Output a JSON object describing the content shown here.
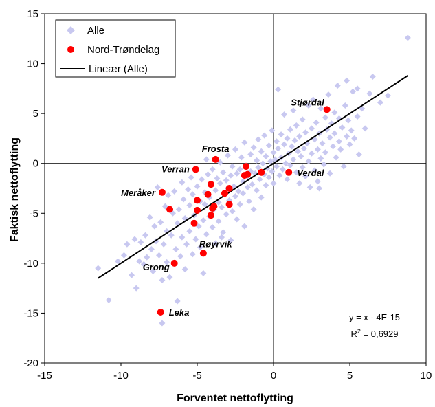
{
  "chart_data": {
    "type": "scatter",
    "xlabel": "Forventet nettoflytting",
    "ylabel": "Faktisk nettoflytting",
    "xlim": [
      -15,
      10
    ],
    "ylim": [
      -20,
      15
    ],
    "xticks": [
      "-15",
      "-10",
      "-5",
      "0",
      "5",
      "10"
    ],
    "yticks": [
      "15",
      "10",
      "5",
      "0",
      "-5",
      "-10",
      "-15",
      "-20"
    ],
    "grid": false,
    "legend_position": "top-left",
    "legend": {
      "all": "Alle",
      "nt": "Nord-Trøndelag",
      "trend": "Lineær (Alle)"
    },
    "trendline": {
      "equation": "y = x - 4E-15",
      "r2_prefix": "R",
      "r2_sup": "2",
      "r2_value": " = 0,6929",
      "x_start": -11.5,
      "x_end": 8.8,
      "slope": 1,
      "intercept": 0
    },
    "series": [
      {
        "name": "Alle",
        "color": "#c8c8f0",
        "marker": "diamond",
        "points": [
          [
            -11.5,
            -10.5
          ],
          [
            -10.8,
            -13.7
          ],
          [
            -10.2,
            -9.8
          ],
          [
            -9.8,
            -9.2
          ],
          [
            -9.6,
            -8.1
          ],
          [
            -9.3,
            -11.2
          ],
          [
            -9.1,
            -7.6
          ],
          [
            -9.0,
            -12.5
          ],
          [
            -8.8,
            -9.8
          ],
          [
            -8.7,
            -7.9
          ],
          [
            -8.5,
            -10.1
          ],
          [
            -8.4,
            -7.2
          ],
          [
            -8.3,
            -9.4
          ],
          [
            -8.1,
            -5.4
          ],
          [
            -8.0,
            -8.6
          ],
          [
            -7.9,
            -10.8
          ],
          [
            -7.8,
            -6.3
          ],
          [
            -7.7,
            -7.8
          ],
          [
            -7.6,
            -2.4
          ],
          [
            -7.5,
            -9.2
          ],
          [
            -7.4,
            -5.9
          ],
          [
            -7.3,
            -16.0
          ],
          [
            -7.3,
            -11.7
          ],
          [
            -7.2,
            -8.1
          ],
          [
            -7.1,
            -4.3
          ],
          [
            -7.0,
            -6.8
          ],
          [
            -7.0,
            -9.9
          ],
          [
            -6.9,
            -3.2
          ],
          [
            -6.8,
            -11.4
          ],
          [
            -6.7,
            -7.2
          ],
          [
            -6.6,
            -5.0
          ],
          [
            -6.5,
            -2.8
          ],
          [
            -6.4,
            -8.6
          ],
          [
            -6.3,
            -13.8
          ],
          [
            -6.3,
            -6.0
          ],
          [
            -6.2,
            -4.6
          ],
          [
            -6.1,
            -9.3
          ],
          [
            -6.0,
            -1.9
          ],
          [
            -6.0,
            -7.4
          ],
          [
            -5.9,
            -3.6
          ],
          [
            -5.8,
            -5.5
          ],
          [
            -5.8,
            -10.6
          ],
          [
            -5.7,
            -8.1
          ],
          [
            -5.6,
            -2.6
          ],
          [
            -5.5,
            -4.2
          ],
          [
            -5.5,
            -6.8
          ],
          [
            -5.4,
            -1.4
          ],
          [
            -5.3,
            -3.1
          ],
          [
            -5.3,
            -9.1
          ],
          [
            -5.2,
            -5.2
          ],
          [
            -5.1,
            -7.6
          ],
          [
            -5.1,
            -0.7
          ],
          [
            -5.0,
            -2.3
          ],
          [
            -5.0,
            -4.7
          ],
          [
            -4.9,
            -6.3
          ],
          [
            -4.8,
            -3.8
          ],
          [
            -4.8,
            -8.4
          ],
          [
            -4.7,
            -1.6
          ],
          [
            -4.6,
            -5.7
          ],
          [
            -4.6,
            -11.0
          ],
          [
            -4.5,
            -2.9
          ],
          [
            -4.5,
            -4.1
          ],
          [
            -4.4,
            0.4
          ],
          [
            -4.4,
            -7.1
          ],
          [
            -4.3,
            -1.1
          ],
          [
            -4.2,
            -3.4
          ],
          [
            -4.2,
            -5.3
          ],
          [
            -4.1,
            -2.2
          ],
          [
            -4.0,
            -6.4
          ],
          [
            -4.0,
            -0.6
          ],
          [
            -3.9,
            -4.6
          ],
          [
            -3.8,
            -2.7
          ],
          [
            -3.8,
            -8.0
          ],
          [
            -3.7,
            -1.5
          ],
          [
            -3.6,
            -3.9
          ],
          [
            -3.6,
            -5.8
          ],
          [
            -3.5,
            0.1
          ],
          [
            -3.5,
            -2.0
          ],
          [
            -3.4,
            -4.4
          ],
          [
            -3.3,
            -0.9
          ],
          [
            -3.3,
            -6.9
          ],
          [
            -3.2,
            -3.1
          ],
          [
            -3.1,
            -1.7
          ],
          [
            -3.1,
            -5.1
          ],
          [
            -3.0,
            0.8
          ],
          [
            -3.0,
            -2.5
          ],
          [
            -2.9,
            -3.7
          ],
          [
            -2.8,
            -1.2
          ],
          [
            -2.8,
            -7.7
          ],
          [
            -2.7,
            -4.8
          ],
          [
            -2.7,
            -0.3
          ],
          [
            -2.6,
            -2.3
          ],
          [
            -2.5,
            -3.3
          ],
          [
            -2.5,
            1.4
          ],
          [
            -2.4,
            -1.0
          ],
          [
            -2.4,
            -5.6
          ],
          [
            -2.3,
            -2.8
          ],
          [
            -2.2,
            -0.6
          ],
          [
            -2.2,
            -4.1
          ],
          [
            -2.1,
            0.6
          ],
          [
            -2.0,
            -1.8
          ],
          [
            -2.0,
            -3.0
          ],
          [
            -1.9,
            2.1
          ],
          [
            -1.9,
            -6.3
          ],
          [
            -1.8,
            -0.2
          ],
          [
            -1.7,
            -2.4
          ],
          [
            -1.7,
            -1.3
          ],
          [
            -1.6,
            -3.8
          ],
          [
            -1.5,
            0.9
          ],
          [
            -1.5,
            -0.8
          ],
          [
            -1.4,
            -2.1
          ],
          [
            -1.3,
            1.6
          ],
          [
            -1.3,
            -4.6
          ],
          [
            -1.2,
            -1.0
          ],
          [
            -1.1,
            0.3
          ],
          [
            -1.1,
            -2.7
          ],
          [
            -1.0,
            2.4
          ],
          [
            -1.0,
            -0.4
          ],
          [
            -0.9,
            -1.6
          ],
          [
            -0.8,
            1.2
          ],
          [
            -0.8,
            -3.4
          ],
          [
            -0.7,
            0.0
          ],
          [
            -0.6,
            -1.1
          ],
          [
            -0.6,
            2.8
          ],
          [
            -0.5,
            0.7
          ],
          [
            -0.5,
            -2.2
          ],
          [
            -0.4,
            -0.5
          ],
          [
            -0.3,
            1.8
          ],
          [
            -0.3,
            -1.4
          ],
          [
            -0.2,
            0.2
          ],
          [
            -0.1,
            3.3
          ],
          [
            -0.1,
            -0.8
          ],
          [
            0.0,
            1.1
          ],
          [
            0.0,
            -2.0
          ],
          [
            0.1,
            0.4
          ],
          [
            0.2,
            2.2
          ],
          [
            0.2,
            -0.3
          ],
          [
            0.3,
            7.4
          ],
          [
            0.3,
            1.5
          ],
          [
            0.4,
            -1.2
          ],
          [
            0.5,
            0.6
          ],
          [
            0.5,
            2.9
          ],
          [
            0.6,
            -0.6
          ],
          [
            0.7,
            1.9
          ],
          [
            0.7,
            4.9
          ],
          [
            0.8,
            0.0
          ],
          [
            0.9,
            2.5
          ],
          [
            0.9,
            -1.6
          ],
          [
            1.0,
            1.0
          ],
          [
            1.1,
            3.4
          ],
          [
            1.1,
            -0.2
          ],
          [
            1.2,
            1.7
          ],
          [
            1.3,
            5.3
          ],
          [
            1.3,
            0.4
          ],
          [
            1.4,
            2.3
          ],
          [
            1.5,
            -0.9
          ],
          [
            1.5,
            3.8
          ],
          [
            1.6,
            1.2
          ],
          [
            1.7,
            -2.0
          ],
          [
            1.7,
            2.7
          ],
          [
            1.8,
            0.7
          ],
          [
            1.9,
            4.4
          ],
          [
            1.9,
            -0.4
          ],
          [
            2.0,
            1.5
          ],
          [
            2.1,
            3.1
          ],
          [
            2.1,
            -1.3
          ],
          [
            2.2,
            2.0
          ],
          [
            2.3,
            5.8
          ],
          [
            2.3,
            0.2
          ],
          [
            2.4,
            -2.4
          ],
          [
            2.5,
            3.5
          ],
          [
            2.5,
            1.0
          ],
          [
            2.6,
            6.4
          ],
          [
            2.7,
            -0.7
          ],
          [
            2.7,
            2.4
          ],
          [
            2.8,
            4.1
          ],
          [
            2.9,
            1.4
          ],
          [
            2.9,
            -1.8
          ],
          [
            3.0,
            3.0
          ],
          [
            3.1,
            0.5
          ],
          [
            3.1,
            5.5
          ],
          [
            3.2,
            2.0
          ],
          [
            3.3,
            -0.1
          ],
          [
            3.4,
            4.6
          ],
          [
            3.4,
            1.1
          ],
          [
            3.5,
            3.4
          ],
          [
            3.6,
            6.9
          ],
          [
            3.7,
            2.6
          ],
          [
            3.7,
            -1.0
          ],
          [
            3.8,
            4.0
          ],
          [
            3.9,
            1.7
          ],
          [
            4.0,
            5.1
          ],
          [
            4.0,
            3.0
          ],
          [
            4.1,
            0.6
          ],
          [
            4.2,
            7.8
          ],
          [
            4.3,
            2.2
          ],
          [
            4.3,
            4.5
          ],
          [
            4.4,
            1.4
          ],
          [
            4.5,
            3.6
          ],
          [
            4.6,
            -0.3
          ],
          [
            4.7,
            5.8
          ],
          [
            4.8,
            2.7
          ],
          [
            4.9,
            4.3
          ],
          [
            5.0,
            1.9
          ],
          [
            5.1,
            3.3
          ],
          [
            5.2,
            7.2
          ],
          [
            5.3,
            2.5
          ],
          [
            5.5,
            4.7
          ],
          [
            5.6,
            0.9
          ],
          [
            5.8,
            5.5
          ],
          [
            6.0,
            3.5
          ],
          [
            6.3,
            7.0
          ],
          [
            6.5,
            8.7
          ],
          [
            7.0,
            6.1
          ],
          [
            7.5,
            6.8
          ],
          [
            8.8,
            12.6
          ],
          [
            4.8,
            8.3
          ],
          [
            5.5,
            7.5
          ],
          [
            3.0,
            -2.5
          ],
          [
            -3.4,
            -7.4
          ]
        ]
      },
      {
        "name": "Nord-Trøndelag",
        "color": "#ff0000",
        "marker": "circle",
        "points": [
          [
            3.5,
            5.4
          ],
          [
            -3.8,
            0.4
          ],
          [
            -5.1,
            -0.6
          ],
          [
            1.0,
            -0.9
          ],
          [
            -7.3,
            -2.9
          ],
          [
            -6.8,
            -4.6
          ],
          [
            -7.4,
            -14.9
          ],
          [
            -6.5,
            -10.0
          ],
          [
            -4.6,
            -9.0
          ],
          [
            -1.8,
            -0.3
          ],
          [
            -1.9,
            -1.2
          ],
          [
            -1.7,
            -1.1
          ],
          [
            -0.8,
            -0.9
          ],
          [
            -2.9,
            -2.5
          ],
          [
            -3.2,
            -3.0
          ],
          [
            -4.1,
            -2.1
          ],
          [
            -4.3,
            -3.1
          ],
          [
            -5.0,
            -3.7
          ],
          [
            -5.0,
            -4.7
          ],
          [
            -4.0,
            -4.5
          ],
          [
            -3.9,
            -4.3
          ],
          [
            -2.9,
            -4.1
          ],
          [
            -4.1,
            -5.2
          ],
          [
            -5.2,
            -6.0
          ]
        ]
      }
    ],
    "annotations": [
      {
        "text": "Stjørdal",
        "x": 3.5,
        "y": 5.4,
        "anchor": "end",
        "dx": -4,
        "dy": -10
      },
      {
        "text": "Frosta",
        "x": -3.8,
        "y": 0.4,
        "anchor": "middle",
        "dx": 0,
        "dy": -15
      },
      {
        "text": "Verran",
        "x": -5.1,
        "y": -0.6,
        "anchor": "end",
        "dx": -9,
        "dy": 0
      },
      {
        "text": "Verdal",
        "x": 1.0,
        "y": -0.9,
        "anchor": "start",
        "dx": 12,
        "dy": 1
      },
      {
        "text": "Meråker",
        "x": -7.3,
        "y": -2.9,
        "anchor": "end",
        "dx": -10,
        "dy": 1
      },
      {
        "text": "Røyrvik",
        "x": -4.6,
        "y": -9.0,
        "anchor": "start",
        "dx": -6,
        "dy": -13
      },
      {
        "text": "Grong",
        "x": -6.5,
        "y": -10.0,
        "anchor": "end",
        "dx": -7,
        "dy": 6
      },
      {
        "text": "Leka",
        "x": -7.4,
        "y": -14.9,
        "anchor": "start",
        "dx": 12,
        "dy": 1
      }
    ]
  }
}
